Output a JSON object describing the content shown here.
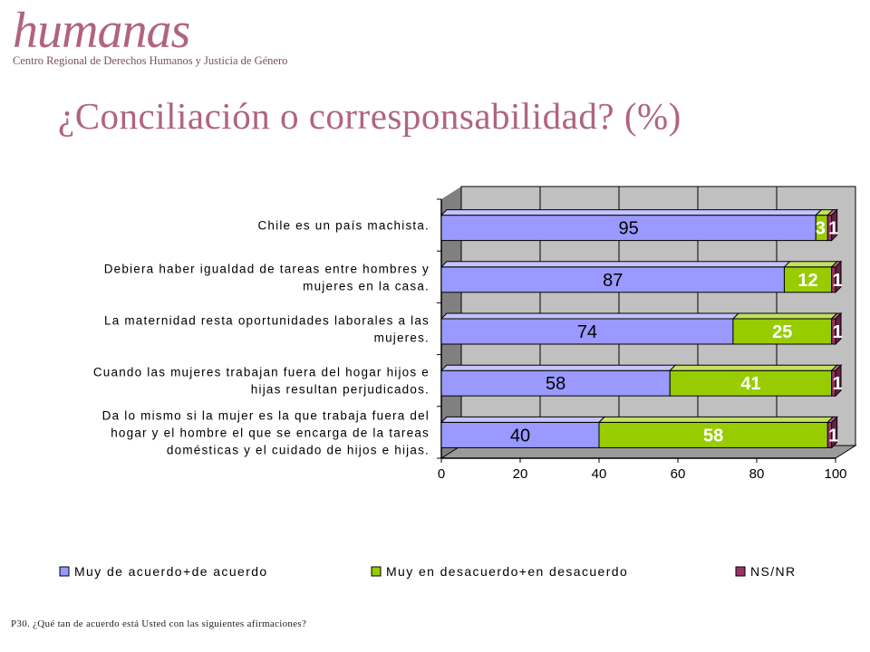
{
  "header": {
    "logo_word": "humanas",
    "logo_subtitle": "Centro Regional de Derechos Humanos y Justicia de Género",
    "title": "¿Conciliación o corresponsabilidad? (%)"
  },
  "footnote": "P30. ¿Qué tan de acuerdo está Usted con las siguientes afirmaciones?",
  "colors": {
    "series1": "#9999ff",
    "series2": "#99cc00",
    "series3": "#993366",
    "wall": "#c0c0c0",
    "title": "#b0647f"
  },
  "chart_data": {
    "type": "bar",
    "orientation": "horizontal",
    "stacked": true,
    "categories": [
      [
        "Chile es un país machista."
      ],
      [
        "Debiera haber igualdad de tareas entre hombres y",
        "mujeres en la casa."
      ],
      [
        "La maternidad resta oportunidades laborales a las",
        "mujeres."
      ],
      [
        "Cuando las mujeres trabajan fuera del hogar hijos e",
        "hijas resultan perjudicados."
      ],
      [
        "Da lo mismo si la mujer es la que trabaja fuera del",
        "hogar y el hombre el que se encarga de la tareas",
        "domésticas y el cuidado de hijos e hijas."
      ]
    ],
    "series": [
      {
        "name": "Muy de acuerdo+de acuerdo",
        "values": [
          95,
          87,
          74,
          58,
          40
        ]
      },
      {
        "name": "Muy en desacuerdo+en desacuerdo",
        "values": [
          3,
          12,
          25,
          41,
          58
        ]
      },
      {
        "name": "NS/NR",
        "values": [
          1,
          1,
          1,
          1,
          1
        ]
      }
    ],
    "x_ticks": [
      "0",
      "20",
      "40",
      "60",
      "80",
      "100"
    ],
    "xlim": [
      0,
      100
    ],
    "grid": true,
    "legend_position": "bottom"
  }
}
